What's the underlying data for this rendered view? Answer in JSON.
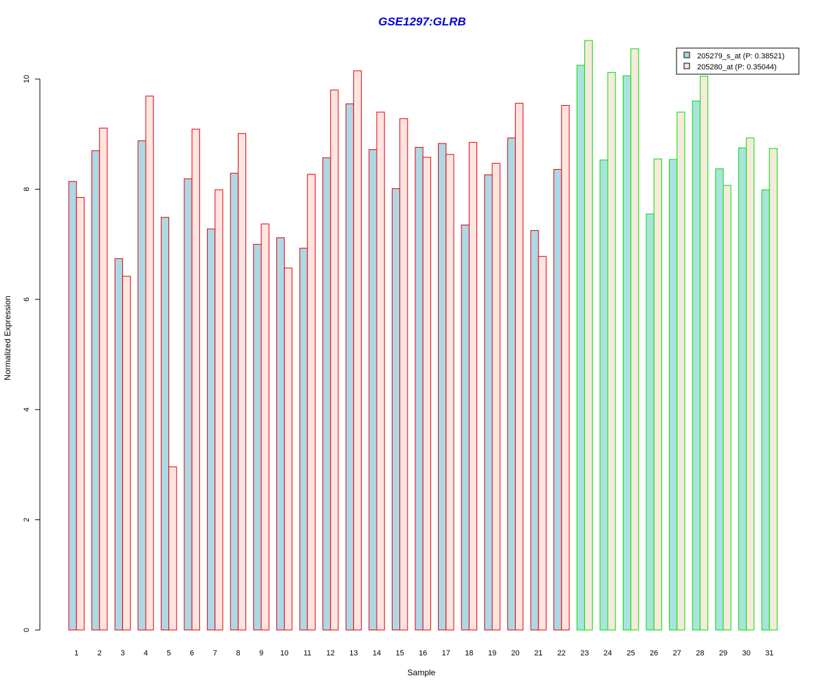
{
  "chart_data": {
    "type": "bar",
    "title": "GSE1297:GLRB",
    "xlabel": "Sample",
    "ylabel": "Normalized Expression",
    "ylim": [
      0,
      10.8
    ],
    "yticks": [
      "0",
      "2",
      "4",
      "6",
      "8",
      "10"
    ],
    "categories": [
      "1",
      "2",
      "3",
      "4",
      "5",
      "6",
      "7",
      "8",
      "9",
      "10",
      "11",
      "12",
      "13",
      "14",
      "15",
      "16",
      "17",
      "18",
      "19",
      "20",
      "21",
      "22",
      "23",
      "24",
      "25",
      "26",
      "27",
      "28",
      "29",
      "30",
      "31"
    ],
    "series": [
      {
        "name": "205279_s_at (P: 0.38521)",
        "values": [
          8.14,
          8.7,
          6.74,
          8.88,
          7.49,
          8.19,
          7.28,
          8.29,
          7.0,
          7.12,
          6.93,
          8.57,
          9.55,
          8.72,
          8.01,
          8.76,
          8.83,
          7.35,
          8.26,
          8.93,
          7.25,
          8.36,
          10.25,
          8.53,
          10.06,
          7.55,
          8.54,
          9.6,
          8.37,
          8.75,
          7.99
        ]
      },
      {
        "name": "205280_at (P: 0.35044)",
        "values": [
          7.85,
          9.11,
          6.42,
          9.69,
          2.96,
          9.09,
          7.99,
          9.01,
          7.37,
          6.57,
          8.27,
          9.8,
          10.15,
          9.4,
          9.28,
          8.58,
          8.63,
          8.85,
          8.47,
          9.56,
          6.78,
          9.52,
          10.7,
          10.12,
          10.55,
          8.55,
          9.4,
          10.05,
          8.07,
          8.93,
          8.74
        ]
      }
    ],
    "groups": [
      {
        "from": 1,
        "to": 22,
        "border_color": "#e00000"
      },
      {
        "from": 23,
        "to": 31,
        "border_color": "#00dd00"
      }
    ],
    "colors": {
      "group1_series1": "#add8e6",
      "group1_series2": "#ffe4e1",
      "group2_series1": "#a8e4dc",
      "group2_series2": "#f5eadc",
      "legend_series1": "#add8e6",
      "legend_series2": "#ffe4e1",
      "title": "#0000e0",
      "axis": "#000000"
    },
    "legend_position": "top-right",
    "grid": false
  }
}
